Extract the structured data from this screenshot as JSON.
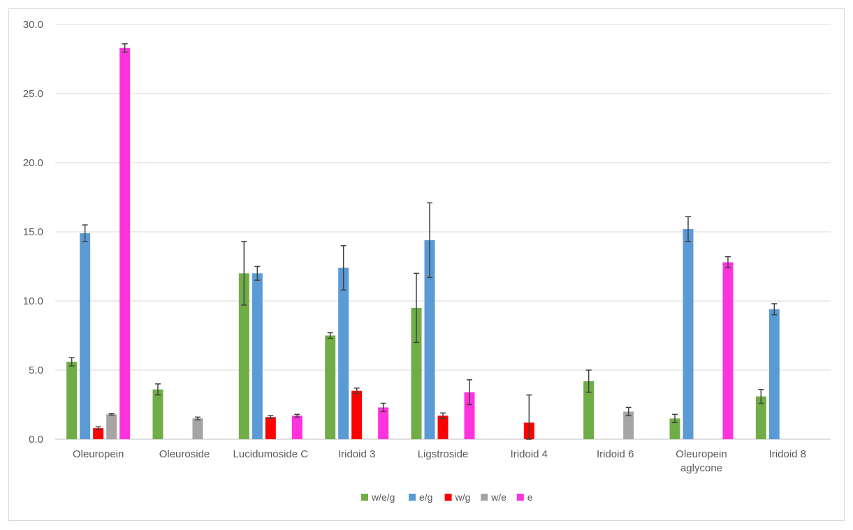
{
  "chart_data": {
    "type": "bar",
    "categories": [
      [
        "Oleuropein"
      ],
      [
        "Oleuroside"
      ],
      [
        "Lucidumoside C"
      ],
      [
        "Iridoid 3"
      ],
      [
        "Ligstroside"
      ],
      [
        "Iridoid 4"
      ],
      [
        "Iridoid 6"
      ],
      [
        "Oleuropein",
        "aglycone"
      ],
      [
        "Iridoid 8"
      ]
    ],
    "series": [
      {
        "name": "w/e/g",
        "color": "#70ad47",
        "values": [
          5.6,
          3.6,
          12.0,
          7.5,
          9.5,
          null,
          4.2,
          1.5,
          3.1
        ],
        "errors": [
          0.3,
          0.4,
          2.3,
          0.2,
          2.5,
          null,
          0.8,
          0.3,
          0.5
        ]
      },
      {
        "name": "e/g",
        "color": "#5b9bd5",
        "values": [
          14.9,
          null,
          12.0,
          12.4,
          14.4,
          null,
          null,
          15.2,
          9.4
        ],
        "errors": [
          0.6,
          null,
          0.5,
          1.6,
          2.7,
          null,
          null,
          0.9,
          0.4
        ]
      },
      {
        "name": "w/g",
        "color": "#ff0000",
        "values": [
          0.8,
          null,
          1.6,
          3.5,
          1.7,
          1.2,
          null,
          null,
          null
        ],
        "errors": [
          0.1,
          null,
          0.1,
          0.2,
          0.2,
          2.0,
          null,
          null,
          null
        ]
      },
      {
        "name": "w/e",
        "color": "#a5a5a5",
        "values": [
          1.8,
          1.5,
          null,
          null,
          null,
          null,
          2.0,
          null,
          null
        ],
        "errors": [
          0.05,
          0.1,
          null,
          null,
          null,
          null,
          0.3,
          null,
          null
        ]
      },
      {
        "name": "e",
        "color": "#ff33dd",
        "values": [
          28.3,
          null,
          1.7,
          2.3,
          3.4,
          null,
          null,
          12.8,
          null
        ],
        "errors": [
          0.3,
          null,
          0.1,
          0.3,
          0.9,
          null,
          null,
          0.4,
          null
        ]
      }
    ],
    "ylim": [
      0,
      30
    ],
    "yticks": [
      "0.0",
      "5.0",
      "10.0",
      "15.0",
      "20.0",
      "25.0",
      "30.0"
    ],
    "ytick_values": [
      0,
      5,
      10,
      15,
      20,
      25,
      30
    ],
    "grid": true,
    "legend_position": "bottom"
  }
}
